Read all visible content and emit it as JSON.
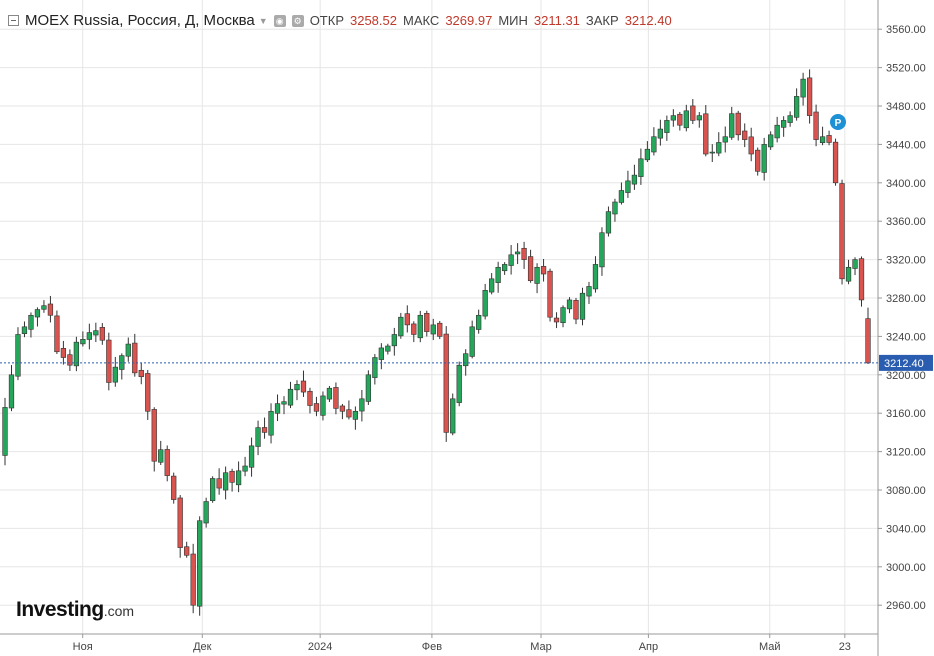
{
  "header": {
    "title": "MOEX Russia, Россия, Д, Москва",
    "open_label": "ОТКР",
    "open_value": "3258.52",
    "high_label": "МАКС",
    "high_value": "3269.97",
    "low_label": "МИН",
    "low_value": "3211.31",
    "close_label": "ЗАКР",
    "close_value": "3212.40"
  },
  "logo": {
    "brand": "Investing",
    "suffix": ".com"
  },
  "colors": {
    "up": "#26a65b",
    "down": "#d9534f",
    "grid": "#e6e6e6",
    "price_line": "#2a5db0",
    "marker": "#1e90d6"
  },
  "chart_data": {
    "type": "candlestick",
    "title": "MOEX Russia, Россия, Д, Москва",
    "ylim": [
      2930,
      3580
    ],
    "y_ticks": [
      2960,
      3000,
      3040,
      3080,
      3120,
      3160,
      3200,
      3240,
      3280,
      3320,
      3360,
      3400,
      3440,
      3480,
      3520,
      3560
    ],
    "x_tick_labels": [
      "Ноя",
      "Дек",
      "2024",
      "Фев",
      "Мар",
      "Апр",
      "Май",
      "23"
    ],
    "grid": true,
    "last_price": {
      "value": 3212.4,
      "label": "3212.40"
    },
    "marker": {
      "label": "P"
    },
    "close_path": [
      3166,
      3200,
      3242,
      3250,
      3262,
      3268,
      3272,
      3262,
      3224,
      3218,
      3210,
      3234,
      3237,
      3244,
      3246,
      3236,
      3192,
      3208,
      3220,
      3232,
      3202,
      3198,
      3162,
      3110,
      3122,
      3095,
      3070,
      3020,
      3012,
      2960,
      3048,
      3068,
      3092,
      3082,
      3098,
      3088,
      3100,
      3105,
      3126,
      3145,
      3140,
      3162,
      3170,
      3172,
      3185,
      3190,
      3182,
      3168,
      3162,
      3178,
      3186,
      3165,
      3162,
      3156,
      3162,
      3175,
      3200,
      3218,
      3228,
      3230,
      3242,
      3260,
      3252,
      3242,
      3262,
      3245,
      3252,
      3240,
      3140,
      3175,
      3210,
      3222,
      3250,
      3262,
      3288,
      3300,
      3312,
      3315,
      3325,
      3328,
      3320,
      3298,
      3312,
      3305,
      3260,
      3255,
      3270,
      3278,
      3258,
      3285,
      3292,
      3315,
      3348,
      3370,
      3380,
      3392,
      3402,
      3408,
      3425,
      3435,
      3448,
      3456,
      3465,
      3470,
      3460,
      3475,
      3465,
      3470,
      3430,
      3432,
      3442,
      3448,
      3472,
      3450,
      3445,
      3430,
      3412,
      3440,
      3450,
      3460,
      3465,
      3470,
      3490,
      3508,
      3470,
      3445,
      3448,
      3442,
      3400,
      3300,
      3312,
      3320,
      3278,
      3212.4
    ]
  }
}
